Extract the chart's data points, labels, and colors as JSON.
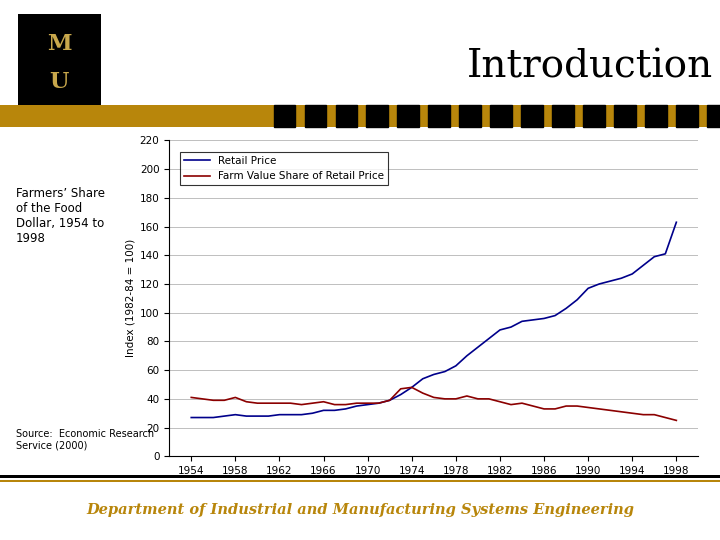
{
  "title": "Introduction",
  "subtitle_left": "Farmers’ Share\nof the Food\nDollar, 1954 to\n1998",
  "source_text": "Source:  Economic Research\nService (2000)",
  "footer_text": "Department of Industrial and Manufacturing Systems Engineering",
  "ylabel": "Index (1982-84 = 100)",
  "ylim": [
    0,
    220
  ],
  "yticks": [
    0,
    20,
    40,
    60,
    80,
    100,
    120,
    140,
    160,
    180,
    200,
    220
  ],
  "xticks": [
    1954,
    1958,
    1962,
    1966,
    1970,
    1974,
    1978,
    1982,
    1986,
    1990,
    1994,
    1998
  ],
  "legend_retail": "Retail Price",
  "legend_farm": "Farm Value Share of Retail Price",
  "retail_color": "#00008B",
  "farm_color": "#8B0000",
  "bg_color": "#FFFFFF",
  "header_bar_color": "#B8860B",
  "title_color": "#000000",
  "footer_text_color": "#B8860B",
  "years": [
    1954,
    1955,
    1956,
    1957,
    1958,
    1959,
    1960,
    1961,
    1962,
    1963,
    1964,
    1965,
    1966,
    1967,
    1968,
    1969,
    1970,
    1971,
    1972,
    1973,
    1974,
    1975,
    1976,
    1977,
    1978,
    1979,
    1980,
    1981,
    1982,
    1983,
    1984,
    1985,
    1986,
    1987,
    1988,
    1989,
    1990,
    1991,
    1992,
    1993,
    1994,
    1995,
    1996,
    1997,
    1998
  ],
  "retail_price": [
    27,
    27,
    27,
    28,
    29,
    28,
    28,
    28,
    29,
    29,
    29,
    30,
    32,
    32,
    33,
    35,
    36,
    37,
    39,
    43,
    48,
    54,
    57,
    59,
    63,
    70,
    76,
    82,
    88,
    90,
    94,
    95,
    96,
    98,
    103,
    109,
    117,
    120,
    122,
    124,
    127,
    133,
    139,
    141,
    163
  ],
  "farm_value": [
    41,
    40,
    39,
    39,
    41,
    38,
    37,
    37,
    37,
    37,
    36,
    37,
    38,
    36,
    36,
    37,
    37,
    37,
    39,
    47,
    48,
    44,
    41,
    40,
    40,
    42,
    40,
    40,
    38,
    36,
    37,
    35,
    33,
    33,
    35,
    35,
    34,
    33,
    32,
    31,
    30,
    29,
    29,
    27,
    25
  ]
}
